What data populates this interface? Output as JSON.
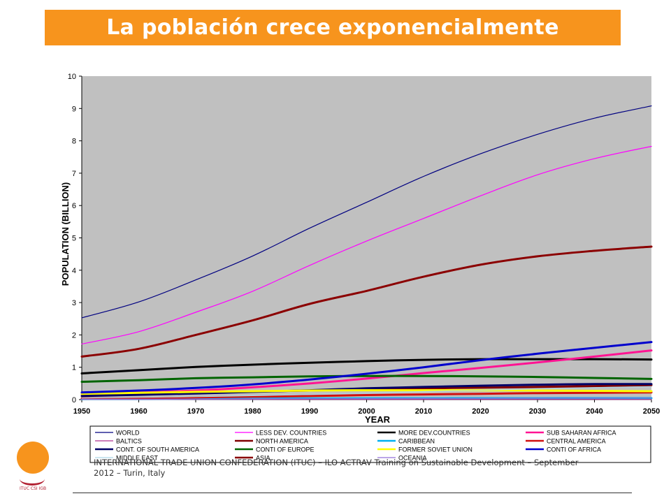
{
  "slide": {
    "title": "La población crece exponencialmente",
    "footer": "INTERNATIONAL TRADE UNION CONFEDERATION (ITUC) – ILO ACTRAV Training on Sustainable Development – September 2012 – Turin, Italy",
    "logo_text": "ITUC CSI IGB",
    "colors": {
      "title_bg": "#f7941d",
      "title_text": "#ffffff",
      "plot_bg": "#c0c0c0"
    }
  },
  "chart_data": {
    "type": "line",
    "title": "",
    "xlabel": "YEAR",
    "ylabel": "POPULATION (BILLION)",
    "xlim": [
      1950,
      2050
    ],
    "ylim": [
      0,
      10
    ],
    "x_ticks": [
      "1950",
      "1960",
      "1970",
      "1980",
      "1990",
      "2000",
      "2010",
      "2020",
      "2030",
      "2040",
      "2050"
    ],
    "y_ticks": [
      "0",
      "1",
      "2",
      "3",
      "4",
      "5",
      "6",
      "7",
      "8",
      "9",
      "10"
    ],
    "grid": false,
    "legend_position": "bottom",
    "x": [
      1950,
      1960,
      1970,
      1980,
      1990,
      2000,
      2010,
      2020,
      2030,
      2040,
      2050
    ],
    "series": [
      {
        "name": "WORLD",
        "color": "#000080",
        "width": 1.2,
        "values": [
          2.53,
          3.02,
          3.7,
          4.44,
          5.3,
          6.1,
          6.9,
          7.6,
          8.2,
          8.7,
          9.08
        ]
      },
      {
        "name": "LESS DEV. COUNTRIES",
        "color": "#ff00ff",
        "width": 1.2,
        "values": [
          1.72,
          2.1,
          2.7,
          3.35,
          4.15,
          4.9,
          5.6,
          6.3,
          6.95,
          7.45,
          7.83
        ]
      },
      {
        "name": "MORE DEV.COUNTRIES",
        "color": "#000000",
        "width": 3,
        "values": [
          0.81,
          0.91,
          1.01,
          1.08,
          1.14,
          1.19,
          1.23,
          1.25,
          1.25,
          1.25,
          1.24
        ]
      },
      {
        "name": "SUB SAHARAN AFRICA",
        "color": "#ff1493",
        "width": 3,
        "values": [
          0.18,
          0.22,
          0.28,
          0.38,
          0.5,
          0.65,
          0.82,
          0.98,
          1.15,
          1.33,
          1.52
        ]
      },
      {
        "name": "BALTICS",
        "color": "#b0308f",
        "width": 1.2,
        "values": [
          0.006,
          0.007,
          0.008,
          0.008,
          0.008,
          0.007,
          0.007,
          0.006,
          0.006,
          0.006,
          0.005
        ]
      },
      {
        "name": "NORTH AMERICA",
        "color": "#800000",
        "width": 3,
        "values": [
          0.17,
          0.2,
          0.23,
          0.25,
          0.28,
          0.32,
          0.35,
          0.37,
          0.39,
          0.42,
          0.45
        ]
      },
      {
        "name": "CARIBBEAN",
        "color": "#00b0f0",
        "width": 3,
        "values": [
          0.017,
          0.02,
          0.025,
          0.029,
          0.034,
          0.038,
          0.041,
          0.043,
          0.044,
          0.045,
          0.045
        ]
      },
      {
        "name": "CENTRAL AMERICA",
        "color": "#d01010",
        "width": 3,
        "values": [
          0.04,
          0.05,
          0.07,
          0.09,
          0.11,
          0.14,
          0.16,
          0.18,
          0.2,
          0.21,
          0.22
        ]
      },
      {
        "name": "CONT. OF SOUTH AMERICA",
        "color": "#000066",
        "width": 3,
        "values": [
          0.11,
          0.15,
          0.19,
          0.24,
          0.29,
          0.35,
          0.39,
          0.43,
          0.46,
          0.48,
          0.48
        ]
      },
      {
        "name": "CONTI OF EUROPE",
        "color": "#006400",
        "width": 3,
        "values": [
          0.55,
          0.6,
          0.66,
          0.69,
          0.72,
          0.73,
          0.73,
          0.72,
          0.7,
          0.67,
          0.64
        ]
      },
      {
        "name": "FORMER SOVIET UNION",
        "color": "#ffff00",
        "width": 3,
        "values": [
          0.18,
          0.21,
          0.24,
          0.26,
          0.28,
          0.29,
          0.29,
          0.29,
          0.28,
          0.27,
          0.26
        ]
      },
      {
        "name": "CONTI OF AFRICA",
        "color": "#0000cd",
        "width": 3,
        "values": [
          0.22,
          0.28,
          0.36,
          0.47,
          0.62,
          0.8,
          1.0,
          1.22,
          1.42,
          1.6,
          1.78
        ]
      },
      {
        "name": "MIDDLE EAST",
        "color": "#add8e6",
        "width": 1.2,
        "values": [
          0.05,
          0.07,
          0.09,
          0.12,
          0.16,
          0.2,
          0.25,
          0.29,
          0.33,
          0.37,
          0.4
        ]
      },
      {
        "name": "ASIA",
        "color": "#8b0000",
        "width": 3,
        "values": [
          1.33,
          1.57,
          2.0,
          2.45,
          2.96,
          3.36,
          3.8,
          4.17,
          4.43,
          4.6,
          4.73
        ]
      },
      {
        "name": "OCEANIA",
        "color": "#9370db",
        "width": 1.2,
        "values": [
          0.013,
          0.016,
          0.019,
          0.023,
          0.026,
          0.03,
          0.035,
          0.039,
          0.043,
          0.046,
          0.049
        ]
      }
    ]
  }
}
